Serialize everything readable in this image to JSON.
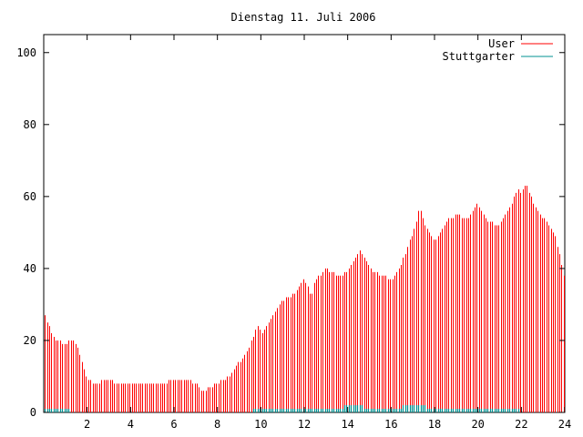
{
  "chart_data": {
    "type": "bar",
    "title": "Dienstag 11. Juli 2006",
    "xlabel": "",
    "ylabel": "",
    "xlim": [
      0,
      24
    ],
    "ylim": [
      0,
      105
    ],
    "x_ticks": [
      2,
      4,
      6,
      8,
      10,
      12,
      14,
      16,
      18,
      20,
      22,
      24
    ],
    "y_ticks": [
      0,
      20,
      40,
      60,
      80,
      100
    ],
    "grid": false,
    "legend_position": "top-right",
    "colors": {
      "User": "#ff0000",
      "Stuttgarter": "#009090"
    },
    "series": [
      {
        "name": "User",
        "style": "impulses",
        "points": [
          [
            0.05,
            27
          ],
          [
            0.5,
            20
          ],
          [
            1.0,
            19
          ],
          [
            1.3,
            20
          ],
          [
            1.6,
            17
          ],
          [
            2.0,
            9
          ],
          [
            2.5,
            8
          ],
          [
            2.8,
            9
          ],
          [
            3.0,
            9
          ],
          [
            3.5,
            8
          ],
          [
            4.0,
            8
          ],
          [
            4.5,
            8
          ],
          [
            5.0,
            8
          ],
          [
            5.5,
            8
          ],
          [
            5.8,
            9
          ],
          [
            6.0,
            9
          ],
          [
            6.5,
            9
          ],
          [
            7.0,
            8
          ],
          [
            7.3,
            6
          ],
          [
            7.6,
            7
          ],
          [
            8.0,
            8
          ],
          [
            8.5,
            10
          ],
          [
            9.0,
            14
          ],
          [
            9.3,
            16
          ],
          [
            9.5,
            19
          ],
          [
            9.8,
            24
          ],
          [
            10.0,
            22
          ],
          [
            10.5,
            27
          ],
          [
            11.0,
            31
          ],
          [
            11.5,
            33
          ],
          [
            11.8,
            36
          ],
          [
            12.0,
            37
          ],
          [
            12.3,
            32
          ],
          [
            12.5,
            37
          ],
          [
            13.0,
            40
          ],
          [
            13.5,
            38
          ],
          [
            14.0,
            39
          ],
          [
            14.5,
            45
          ],
          [
            14.8,
            42
          ],
          [
            15.0,
            40
          ],
          [
            15.5,
            38
          ],
          [
            16.0,
            37
          ],
          [
            16.5,
            42
          ],
          [
            17.0,
            50
          ],
          [
            17.3,
            57
          ],
          [
            17.6,
            51
          ],
          [
            18.0,
            47
          ],
          [
            18.5,
            53
          ],
          [
            19.0,
            55
          ],
          [
            19.5,
            54
          ],
          [
            20.0,
            58
          ],
          [
            20.5,
            53
          ],
          [
            21.0,
            52
          ],
          [
            21.5,
            57
          ],
          [
            21.8,
            62
          ],
          [
            22.0,
            61
          ],
          [
            22.2,
            64
          ],
          [
            22.5,
            59
          ],
          [
            23.0,
            54
          ],
          [
            23.5,
            50
          ],
          [
            23.8,
            43
          ],
          [
            24.0,
            36
          ]
        ]
      },
      {
        "name": "Stuttgarter",
        "style": "impulses",
        "points": [
          [
            0.05,
            1
          ],
          [
            0.5,
            1
          ],
          [
            1.0,
            1
          ],
          [
            1.3,
            0
          ],
          [
            2.0,
            0
          ],
          [
            4.0,
            0
          ],
          [
            6.0,
            0
          ],
          [
            8.0,
            0
          ],
          [
            9.5,
            0
          ],
          [
            9.6,
            1
          ],
          [
            11.0,
            1
          ],
          [
            13.0,
            1
          ],
          [
            14.5,
            2
          ],
          [
            14.8,
            1
          ],
          [
            16.0,
            1
          ],
          [
            17.0,
            2
          ],
          [
            17.5,
            2
          ],
          [
            17.6,
            1
          ],
          [
            20.0,
            1
          ],
          [
            21.8,
            1
          ],
          [
            22.0,
            0
          ],
          [
            24.0,
            0
          ]
        ]
      }
    ]
  }
}
